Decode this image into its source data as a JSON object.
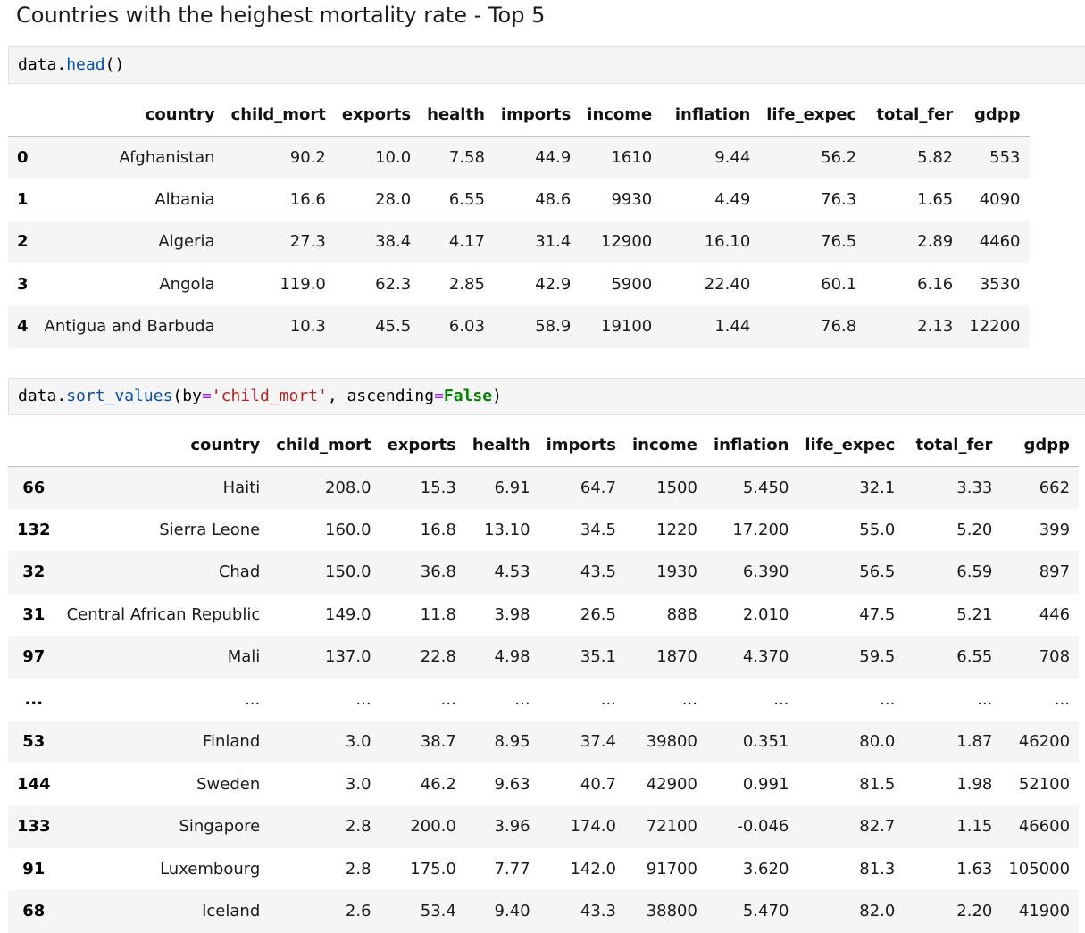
{
  "heading": "Countries with the heighest mortality rate - Top 5",
  "cell1": {
    "code": {
      "var": "data",
      "dot": ".",
      "method": "head",
      "parens": "()"
    }
  },
  "table1": {
    "columns": [
      "",
      "country",
      "child_mort",
      "exports",
      "health",
      "imports",
      "income",
      "inflation",
      "life_expec",
      "total_fer",
      "gdpp"
    ],
    "rows": [
      [
        "0",
        "Afghanistan",
        "90.2",
        "10.0",
        "7.58",
        "44.9",
        "1610",
        "9.44",
        "56.2",
        "5.82",
        "553"
      ],
      [
        "1",
        "Albania",
        "16.6",
        "28.0",
        "6.55",
        "48.6",
        "9930",
        "4.49",
        "76.3",
        "1.65",
        "4090"
      ],
      [
        "2",
        "Algeria",
        "27.3",
        "38.4",
        "4.17",
        "31.4",
        "12900",
        "16.10",
        "76.5",
        "2.89",
        "4460"
      ],
      [
        "3",
        "Angola",
        "119.0",
        "62.3",
        "2.85",
        "42.9",
        "5900",
        "22.40",
        "60.1",
        "6.16",
        "3530"
      ],
      [
        "4",
        "Antigua and Barbuda",
        "10.3",
        "45.5",
        "6.03",
        "58.9",
        "19100",
        "1.44",
        "76.8",
        "2.13",
        "12200"
      ]
    ]
  },
  "cell2": {
    "code": {
      "var": "data",
      "dot": ".",
      "method": "sort_values",
      "open": "(",
      "kw1": "by",
      "eq1": "=",
      "str1": "'child_mort'",
      "comma": ", ",
      "kw2": "ascending",
      "eq2": "=",
      "bool": "False",
      "close": ")"
    }
  },
  "table2": {
    "columns": [
      "",
      "country",
      "child_mort",
      "exports",
      "health",
      "imports",
      "income",
      "inflation",
      "life_expec",
      "total_fer",
      "gdpp"
    ],
    "rows": [
      [
        "66",
        "Haiti",
        "208.0",
        "15.3",
        "6.91",
        "64.7",
        "1500",
        "5.450",
        "32.1",
        "3.33",
        "662"
      ],
      [
        "132",
        "Sierra Leone",
        "160.0",
        "16.8",
        "13.10",
        "34.5",
        "1220",
        "17.200",
        "55.0",
        "5.20",
        "399"
      ],
      [
        "32",
        "Chad",
        "150.0",
        "36.8",
        "4.53",
        "43.5",
        "1930",
        "6.390",
        "56.5",
        "6.59",
        "897"
      ],
      [
        "31",
        "Central African Republic",
        "149.0",
        "11.8",
        "3.98",
        "26.5",
        "888",
        "2.010",
        "47.5",
        "5.21",
        "446"
      ],
      [
        "97",
        "Mali",
        "137.0",
        "22.8",
        "4.98",
        "35.1",
        "1870",
        "4.370",
        "59.5",
        "6.55",
        "708"
      ],
      [
        "...",
        "...",
        "...",
        "...",
        "...",
        "...",
        "...",
        "...",
        "...",
        "...",
        "..."
      ],
      [
        "53",
        "Finland",
        "3.0",
        "38.7",
        "8.95",
        "37.4",
        "39800",
        "0.351",
        "80.0",
        "1.87",
        "46200"
      ],
      [
        "144",
        "Sweden",
        "3.0",
        "46.2",
        "9.63",
        "40.7",
        "42900",
        "0.991",
        "81.5",
        "1.98",
        "52100"
      ],
      [
        "133",
        "Singapore",
        "2.8",
        "200.0",
        "3.96",
        "174.0",
        "72100",
        "-0.046",
        "82.7",
        "1.15",
        "46600"
      ],
      [
        "91",
        "Luxembourg",
        "2.8",
        "175.0",
        "7.77",
        "142.0",
        "91700",
        "3.620",
        "81.3",
        "1.63",
        "105000"
      ],
      [
        "68",
        "Iceland",
        "2.6",
        "53.4",
        "9.40",
        "43.3",
        "38800",
        "5.470",
        "82.0",
        "2.20",
        "41900"
      ]
    ]
  }
}
